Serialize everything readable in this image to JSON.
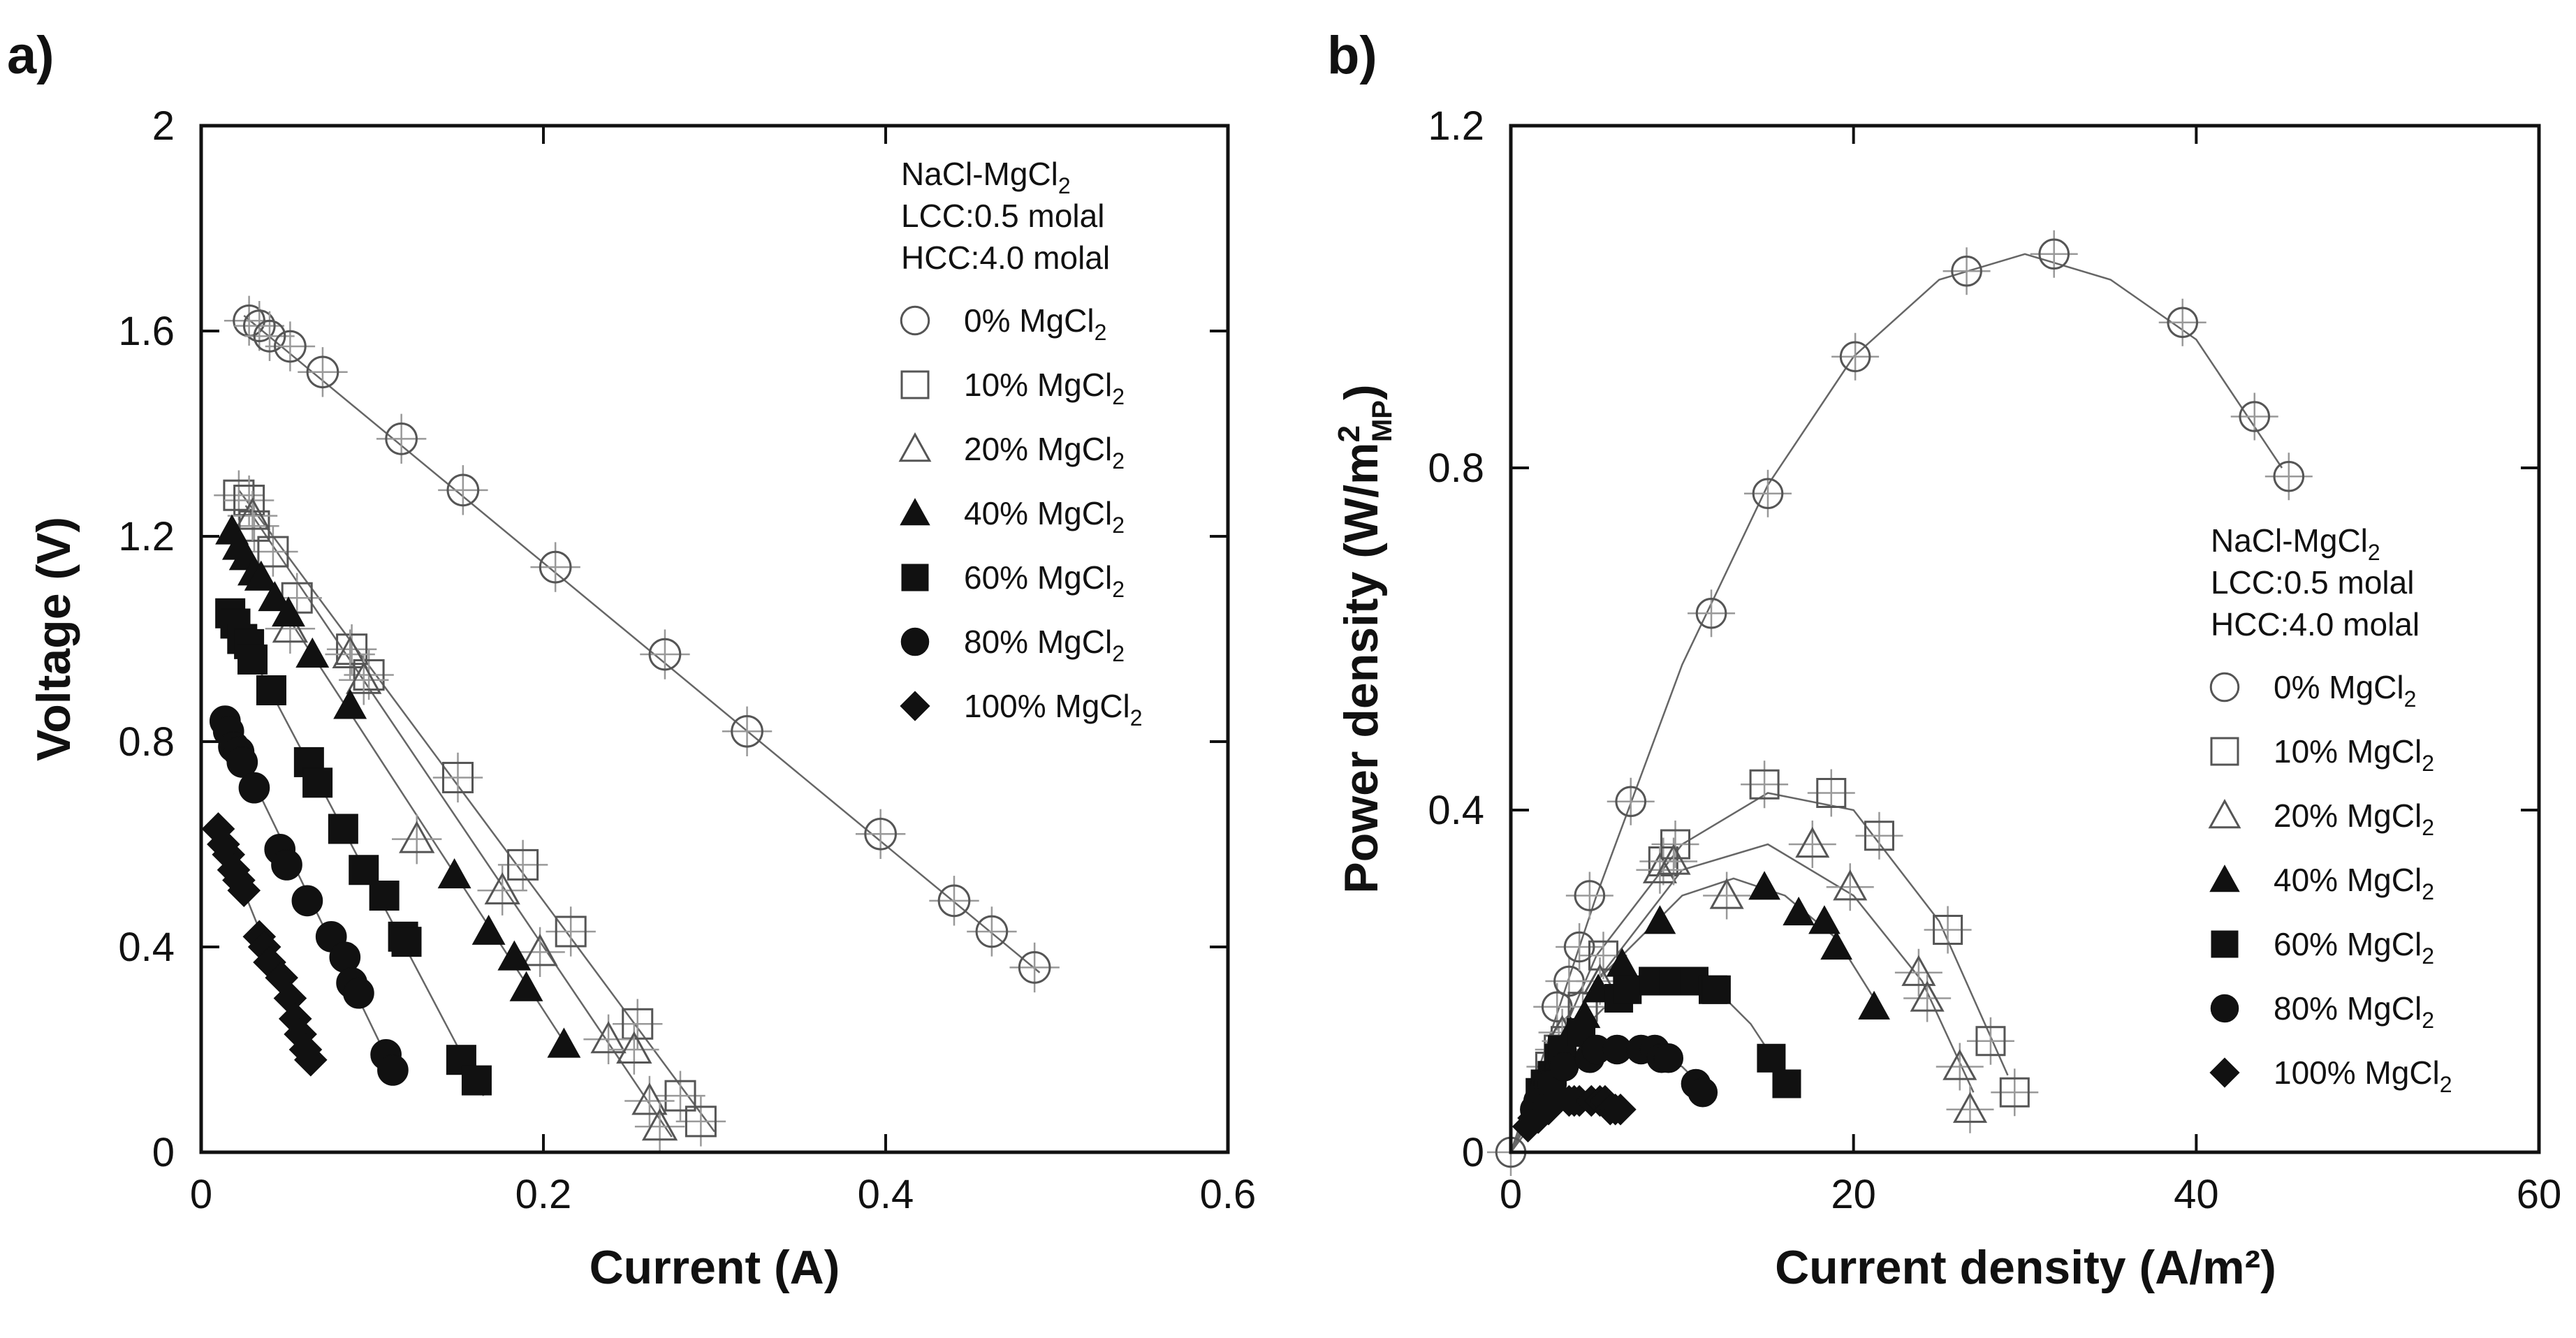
{
  "chart_data": [
    {
      "type": "scatter",
      "panel_label": "a)",
      "title": "",
      "xlabel": "Current (A)",
      "ylabel": "Voltage (V)",
      "xlim": [
        0,
        0.6
      ],
      "ylim": [
        0,
        2
      ],
      "xticks": [
        0,
        0.2,
        0.4,
        0.6
      ],
      "xtick_labels": [
        "0",
        "0.2",
        "0.4",
        "0.6"
      ],
      "yticks": [
        0,
        0.4,
        0.8,
        1.2,
        1.6,
        2
      ],
      "ytick_labels": [
        "0",
        "0.4",
        "0.8",
        "1.2",
        "1.6",
        "2"
      ],
      "legend": {
        "position": "top-right",
        "header": [
          {
            "text": "NaCl-MgCl",
            "sub": "2"
          },
          {
            "text": "LCC:0.5 molal",
            "sub": ""
          },
          {
            "text": "HCC:4.0 molal",
            "sub": ""
          }
        ]
      },
      "series": [
        {
          "name": "0% MgCl",
          "name_sub": "2",
          "marker": "circle-open",
          "x": [
            0.028,
            0.034,
            0.04,
            0.052,
            0.071,
            0.117,
            0.153,
            0.207,
            0.271,
            0.319,
            0.397,
            0.44,
            0.462,
            0.487
          ],
          "y": [
            1.62,
            1.61,
            1.59,
            1.57,
            1.52,
            1.39,
            1.29,
            1.14,
            0.97,
            0.82,
            0.62,
            0.49,
            0.43,
            0.36
          ],
          "fit": [
            [
              0.025,
              1.63
            ],
            [
              0.49,
              0.35
            ]
          ]
        },
        {
          "name": "10% MgCl",
          "name_sub": "2",
          "marker": "square-open",
          "x": [
            0.022,
            0.028,
            0.031,
            0.042,
            0.056,
            0.088,
            0.098,
            0.15,
            0.188,
            0.216,
            0.255,
            0.28,
            0.292
          ],
          "y": [
            1.28,
            1.27,
            1.22,
            1.17,
            1.08,
            0.98,
            0.93,
            0.73,
            0.56,
            0.43,
            0.25,
            0.11,
            0.06
          ],
          "fit": [
            [
              0.022,
              1.29
            ],
            [
              0.3,
              0.04
            ]
          ]
        },
        {
          "name": "20% MgCl",
          "name_sub": "2",
          "marker": "triangle-open",
          "x": [
            0.03,
            0.052,
            0.087,
            0.095,
            0.126,
            0.176,
            0.198,
            0.238,
            0.253,
            0.262,
            0.268
          ],
          "y": [
            1.24,
            1.02,
            0.97,
            0.92,
            0.61,
            0.51,
            0.39,
            0.22,
            0.2,
            0.1,
            0.05
          ],
          "fit": [
            [
              0.026,
              1.26
            ],
            [
              0.275,
              0.03
            ]
          ]
        },
        {
          "name": "40% MgCl",
          "name_sub": "2",
          "marker": "triangle-filled",
          "x": [
            0.018,
            0.022,
            0.026,
            0.031,
            0.035,
            0.043,
            0.051,
            0.065,
            0.087,
            0.148,
            0.168,
            0.183,
            0.19,
            0.212
          ],
          "y": [
            1.21,
            1.18,
            1.16,
            1.13,
            1.12,
            1.08,
            1.05,
            0.97,
            0.87,
            0.54,
            0.43,
            0.38,
            0.32,
            0.21
          ],
          "fit": [
            [
              0.016,
              1.22
            ],
            [
              0.215,
              0.2
            ]
          ]
        },
        {
          "name": "60% MgCl",
          "name_sub": "2",
          "marker": "square-filled",
          "x": [
            0.017,
            0.02,
            0.024,
            0.028,
            0.03,
            0.041,
            0.063,
            0.068,
            0.083,
            0.095,
            0.107,
            0.118,
            0.12,
            0.152,
            0.161
          ],
          "y": [
            1.05,
            1.03,
            1.0,
            0.99,
            0.96,
            0.9,
            0.76,
            0.72,
            0.63,
            0.55,
            0.5,
            0.42,
            0.41,
            0.18,
            0.14
          ],
          "fit": [
            [
              0.015,
              1.06
            ],
            [
              0.165,
              0.11
            ]
          ]
        },
        {
          "name": "80% MgCl",
          "name_sub": "2",
          "marker": "circle-filled",
          "x": [
            0.014,
            0.016,
            0.019,
            0.022,
            0.024,
            0.031,
            0.046,
            0.05,
            0.062,
            0.076,
            0.084,
            0.088,
            0.092,
            0.108,
            0.112
          ],
          "y": [
            0.84,
            0.82,
            0.79,
            0.78,
            0.76,
            0.71,
            0.59,
            0.56,
            0.49,
            0.42,
            0.38,
            0.33,
            0.31,
            0.19,
            0.16
          ],
          "fit": [
            [
              0.012,
              0.85
            ],
            [
              0.115,
              0.14
            ]
          ]
        },
        {
          "name": "100% MgCl",
          "name_sub": "2",
          "marker": "diamond-filled",
          "x": [
            0.01,
            0.013,
            0.016,
            0.019,
            0.022,
            0.025,
            0.034,
            0.037,
            0.04,
            0.047,
            0.052,
            0.055,
            0.058,
            0.061,
            0.064
          ],
          "y": [
            0.63,
            0.6,
            0.58,
            0.55,
            0.53,
            0.51,
            0.42,
            0.4,
            0.37,
            0.34,
            0.3,
            0.26,
            0.23,
            0.2,
            0.18
          ],
          "fit": [
            [
              0.009,
              0.64
            ],
            [
              0.066,
              0.17
            ]
          ]
        }
      ]
    },
    {
      "type": "scatter",
      "panel_label": "b)",
      "title": "",
      "xlabel": "Current density (A/m²)",
      "ylabel_main": "Power density (W/m",
      "ylabel_sup": "2",
      "ylabel_sub": "MP",
      "ylabel_end": ")",
      "xlim": [
        0,
        60
      ],
      "ylim": [
        0,
        1.2
      ],
      "xticks": [
        0,
        20,
        40,
        60
      ],
      "xtick_labels": [
        "0",
        "20",
        "40",
        "60"
      ],
      "yticks": [
        0,
        0.4,
        0.8,
        1.2
      ],
      "ytick_labels": [
        "0",
        "0.4",
        "0.8",
        "1.2"
      ],
      "legend": {
        "position": "right",
        "header": [
          {
            "text": "NaCl-MgCl",
            "sub": "2"
          },
          {
            "text": "LCC:0.5 molal",
            "sub": ""
          },
          {
            "text": "HCC:4.0 molal",
            "sub": ""
          }
        ]
      },
      "series": [
        {
          "name": "0% MgCl",
          "name_sub": "2",
          "marker": "circle-open",
          "x": [
            0,
            2.7,
            3.4,
            4.0,
            4.6,
            7.0,
            11.7,
            15.0,
            20.1,
            26.6,
            31.7,
            39.2,
            43.4,
            45.4
          ],
          "y": [
            0,
            0.17,
            0.2,
            0.24,
            0.3,
            0.41,
            0.63,
            0.77,
            0.93,
            1.03,
            1.05,
            0.97,
            0.86,
            0.79
          ],
          "fit": [
            [
              0,
              0
            ],
            [
              5,
              0.3
            ],
            [
              10,
              0.57
            ],
            [
              15,
              0.78
            ],
            [
              20,
              0.93
            ],
            [
              25,
              1.02
            ],
            [
              30,
              1.05
            ],
            [
              35,
              1.02
            ],
            [
              40,
              0.95
            ],
            [
              45,
              0.8
            ]
          ]
        },
        {
          "name": "10% MgCl",
          "name_sub": "2",
          "marker": "square-open",
          "x": [
            2.3,
            2.8,
            3.2,
            4.2,
            5.4,
            8.9,
            9.6,
            14.8,
            18.7,
            21.5,
            25.5,
            28.0,
            29.4
          ],
          "y": [
            0.1,
            0.12,
            0.13,
            0.17,
            0.23,
            0.34,
            0.36,
            0.43,
            0.42,
            0.37,
            0.26,
            0.13,
            0.07
          ],
          "fit": [
            [
              0,
              0
            ],
            [
              5,
              0.23
            ],
            [
              10,
              0.36
            ],
            [
              15,
              0.42
            ],
            [
              20,
              0.4
            ],
            [
              25,
              0.27
            ],
            [
              29,
              0.09
            ]
          ]
        },
        {
          "name": "20% MgCl",
          "name_sub": "2",
          "marker": "triangle-open",
          "x": [
            3.0,
            5.2,
            8.7,
            9.5,
            12.6,
            17.6,
            19.8,
            23.8,
            24.3,
            26.2,
            26.8
          ],
          "y": [
            0.14,
            0.2,
            0.33,
            0.34,
            0.3,
            0.36,
            0.31,
            0.21,
            0.18,
            0.1,
            0.05
          ],
          "fit": [
            [
              0,
              0
            ],
            [
              5,
              0.2
            ],
            [
              10,
              0.33
            ],
            [
              15,
              0.36
            ],
            [
              20,
              0.3
            ],
            [
              24,
              0.2
            ],
            [
              27,
              0.07
            ]
          ]
        },
        {
          "name": "40% MgCl",
          "name_sub": "2",
          "marker": "triangle-filled",
          "x": [
            1.8,
            2.2,
            2.6,
            3.1,
            3.5,
            4.3,
            5.1,
            6.5,
            8.7,
            14.8,
            16.8,
            18.3,
            19.0,
            21.2
          ],
          "y": [
            0.08,
            0.09,
            0.1,
            0.12,
            0.14,
            0.16,
            0.19,
            0.22,
            0.27,
            0.31,
            0.28,
            0.27,
            0.24,
            0.17
          ],
          "fit": [
            [
              0,
              0
            ],
            [
              5,
              0.2
            ],
            [
              10,
              0.3
            ],
            [
              13,
              0.32
            ],
            [
              16,
              0.3
            ],
            [
              19,
              0.25
            ],
            [
              21.5,
              0.17
            ]
          ]
        },
        {
          "name": "60% MgCl",
          "name_sub": "2",
          "marker": "square-filled",
          "x": [
            1.7,
            2.0,
            2.4,
            2.8,
            3.0,
            4.1,
            6.3,
            6.8,
            8.3,
            9.5,
            10.7,
            11.8,
            12.0,
            15.2,
            16.1
          ],
          "y": [
            0.07,
            0.08,
            0.09,
            0.11,
            0.12,
            0.14,
            0.18,
            0.19,
            0.2,
            0.2,
            0.2,
            0.19,
            0.19,
            0.11,
            0.08
          ],
          "fit": [
            [
              0,
              0
            ],
            [
              3,
              0.12
            ],
            [
              6,
              0.18
            ],
            [
              9,
              0.21
            ],
            [
              12,
              0.19
            ],
            [
              14,
              0.15
            ],
            [
              16.3,
              0.08
            ]
          ]
        },
        {
          "name": "80% MgCl",
          "name_sub": "2",
          "marker": "circle-filled",
          "x": [
            1.4,
            1.6,
            1.9,
            2.2,
            2.4,
            3.1,
            4.6,
            5.0,
            6.2,
            7.6,
            8.4,
            8.8,
            9.2,
            10.8,
            11.2
          ],
          "y": [
            0.05,
            0.06,
            0.07,
            0.08,
            0.08,
            0.1,
            0.11,
            0.12,
            0.12,
            0.12,
            0.12,
            0.11,
            0.11,
            0.08,
            0.07
          ],
          "fit": [
            [
              0,
              0
            ],
            [
              2,
              0.07
            ],
            [
              4,
              0.11
            ],
            [
              6,
              0.12
            ],
            [
              8,
              0.12
            ],
            [
              10,
              0.1
            ],
            [
              11.5,
              0.07
            ]
          ]
        },
        {
          "name": "100% MgCl",
          "name_sub": "2",
          "marker": "diamond-filled",
          "x": [
            1.0,
            1.3,
            1.6,
            1.9,
            2.2,
            2.5,
            3.4,
            3.7,
            4.0,
            4.7,
            5.2,
            5.5,
            5.8,
            6.1,
            6.4
          ],
          "y": [
            0.03,
            0.04,
            0.04,
            0.05,
            0.05,
            0.06,
            0.06,
            0.06,
            0.06,
            0.06,
            0.06,
            0.06,
            0.05,
            0.05,
            0.05
          ],
          "fit": [
            [
              0,
              0
            ],
            [
              1.5,
              0.04
            ],
            [
              3,
              0.06
            ],
            [
              4.5,
              0.065
            ],
            [
              6.5,
              0.05
            ]
          ]
        }
      ]
    }
  ]
}
